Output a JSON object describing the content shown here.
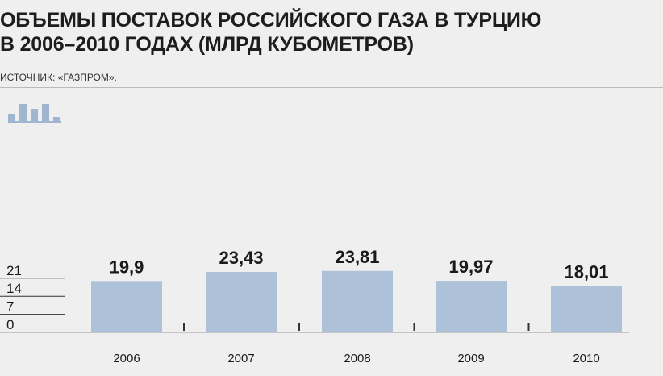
{
  "chart_data": {
    "type": "bar",
    "title_line1": "ОБЪЕМЫ ПОСТАВОК РОССИЙСКОГО ГАЗА В ТУРЦИЮ",
    "title_line2": "В 2006–2010 ГОДАХ (МЛРД КУБОМЕТРОВ)",
    "source": "ИСТОЧНИК: «ГАЗПРОМ».",
    "categories": [
      "2006",
      "2007",
      "2008",
      "2009",
      "2010"
    ],
    "values": [
      19.9,
      23.43,
      23.81,
      19.97,
      18.01
    ],
    "value_labels": [
      "19,9",
      "23,43",
      "23,81",
      "19,97",
      "18,01"
    ],
    "yticks": [
      0,
      7,
      14,
      21
    ],
    "ylim": [
      0,
      28
    ],
    "grid": false,
    "bar_color": "#adc2d9"
  }
}
